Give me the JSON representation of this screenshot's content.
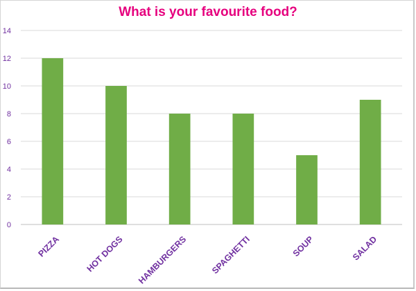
{
  "chart_data": {
    "type": "bar",
    "title": "What is your favourite food?",
    "categories": [
      "PIZZA",
      "HOT DOGS",
      "HAMBURGERS",
      "SPAGHETTI",
      "SOUP",
      "SALAD"
    ],
    "values": [
      12,
      10,
      8,
      8,
      5,
      9
    ],
    "ylim": [
      0,
      14
    ],
    "yticks": [
      "0",
      "2",
      "4",
      "6",
      "8",
      "10",
      "12",
      "14"
    ],
    "xlabel": "",
    "ylabel": "",
    "grid": true,
    "legend": "none"
  },
  "colors": {
    "bar": "#70ad47",
    "title": "#e6007e",
    "tick_label": "#7030a0",
    "grid": "#d9d9d9",
    "axis": "#bfbfbf"
  }
}
